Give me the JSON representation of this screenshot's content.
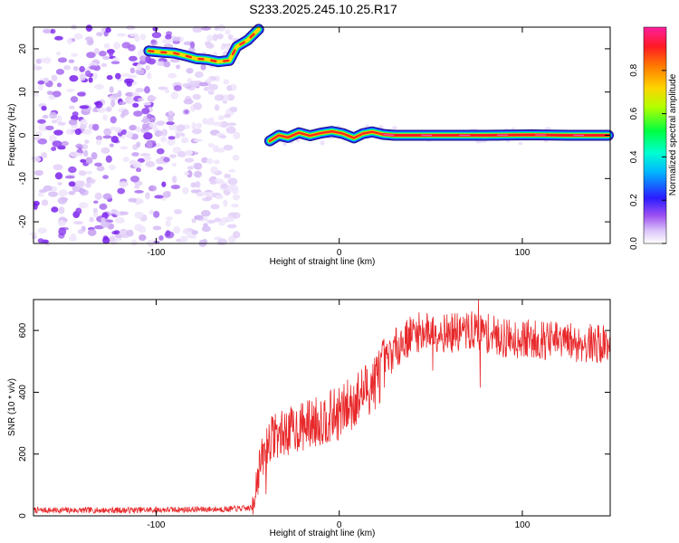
{
  "figure_title": "S233.2025.245.10.25.R17",
  "chart_data": [
    {
      "type": "heatmap",
      "xlabel": "Height of straight line (km)",
      "ylabel": "Frequency (Hz)",
      "xlim": [
        -167,
        148
      ],
      "ylim": [
        -25,
        25
      ],
      "xticks": [
        -100,
        0,
        100
      ],
      "yticks": [
        -20,
        -10,
        0,
        10,
        20
      ],
      "colorbar": {
        "label": "Normalized spectral amplitude",
        "range": [
          0,
          1
        ],
        "ticks": [
          0.0,
          0.2,
          0.4,
          0.6,
          0.8
        ]
      },
      "signal_track": {
        "points": [
          {
            "x": -104,
            "y": 19.5
          },
          {
            "x": -97,
            "y": 19.2
          },
          {
            "x": -90,
            "y": 19.0
          },
          {
            "x": -84,
            "y": 18.4
          },
          {
            "x": -78,
            "y": 17.7
          },
          {
            "x": -72,
            "y": 17.5
          },
          {
            "x": -66,
            "y": 17.0
          },
          {
            "x": -60,
            "y": 17.3
          },
          {
            "x": -56,
            "y": 20.5
          },
          {
            "x": -50,
            "y": 22.0
          },
          {
            "x": -44,
            "y": 24.5
          },
          {
            "x": -38,
            "y": -1.3
          },
          {
            "x": -33,
            "y": 0.0
          },
          {
            "x": -28,
            "y": -0.5
          },
          {
            "x": -22,
            "y": 0.6
          },
          {
            "x": -16,
            "y": -0.1
          },
          {
            "x": -10,
            "y": 0.5
          },
          {
            "x": -4,
            "y": 0.9
          },
          {
            "x": 2,
            "y": 0.4
          },
          {
            "x": 8,
            "y": -0.6
          },
          {
            "x": 13,
            "y": 0.4
          },
          {
            "x": 18,
            "y": 0.8
          },
          {
            "x": 24,
            "y": 0.2
          },
          {
            "x": 30,
            "y": 0.0
          },
          {
            "x": 50,
            "y": 0.0
          },
          {
            "x": 80,
            "y": 0.0
          },
          {
            "x": 105,
            "y": 0.1
          },
          {
            "x": 125,
            "y": 0.0
          },
          {
            "x": 147,
            "y": 0.0
          }
        ],
        "noise_region_x": [
          -167,
          -60
        ]
      }
    },
    {
      "type": "line",
      "xlabel": "Height of straight line (km)",
      "ylabel": "SNR (10 * v/v)",
      "xlim": [
        -167,
        148
      ],
      "ylim": [
        0,
        700
      ],
      "xticks": [
        -100,
        0,
        100
      ],
      "yticks": [
        0,
        200,
        400,
        600
      ],
      "color": "#e8282a",
      "trend": [
        {
          "x": -167,
          "y": 18
        },
        {
          "x": -120,
          "y": 18
        },
        {
          "x": -60,
          "y": 22
        },
        {
          "x": -48,
          "y": 25
        },
        {
          "x": -44,
          "y": 150
        },
        {
          "x": -38,
          "y": 250
        },
        {
          "x": -25,
          "y": 280
        },
        {
          "x": -10,
          "y": 310
        },
        {
          "x": 0,
          "y": 330
        },
        {
          "x": 10,
          "y": 380
        },
        {
          "x": 20,
          "y": 440
        },
        {
          "x": 30,
          "y": 540
        },
        {
          "x": 40,
          "y": 590
        },
        {
          "x": 50,
          "y": 600
        },
        {
          "x": 60,
          "y": 590
        },
        {
          "x": 75,
          "y": 600
        },
        {
          "x": 90,
          "y": 575
        },
        {
          "x": 110,
          "y": 570
        },
        {
          "x": 130,
          "y": 560
        },
        {
          "x": 148,
          "y": 555
        }
      ],
      "spikes": [
        {
          "x": 76,
          "y": 700
        },
        {
          "x": 77,
          "y": 415
        },
        {
          "x": 51,
          "y": 470
        },
        {
          "x": -35,
          "y": 330
        },
        {
          "x": -40,
          "y": 70
        }
      ]
    }
  ]
}
